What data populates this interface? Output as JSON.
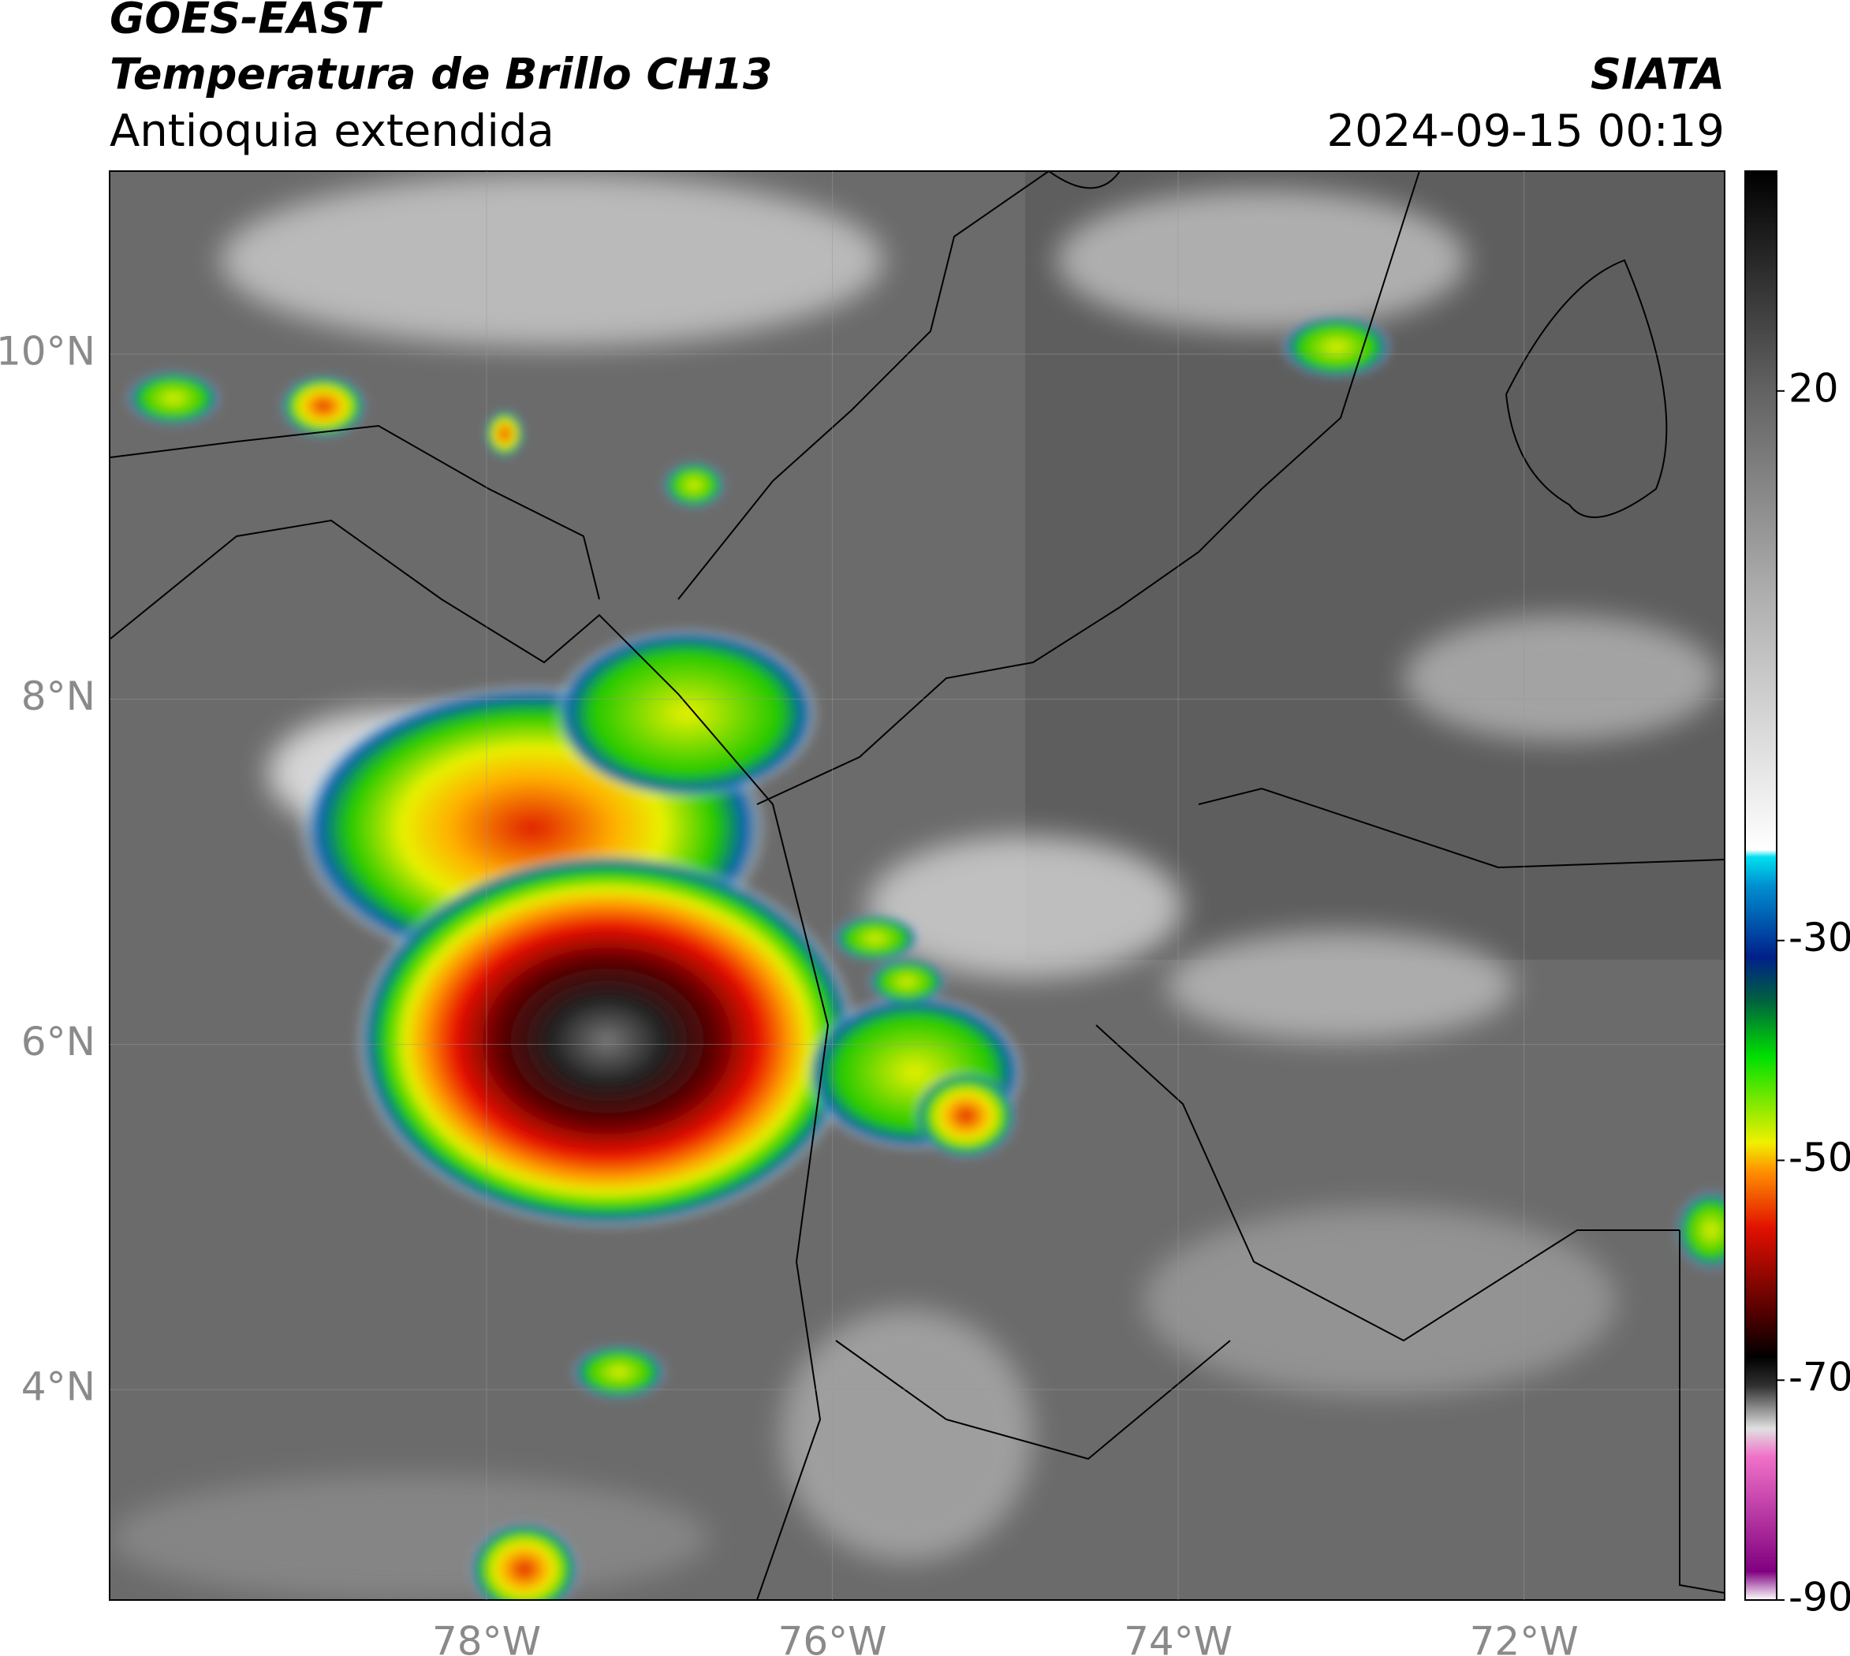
{
  "header": {
    "source": "GOES-EAST",
    "title": "Temperatura de Brillo CH13",
    "subtitle": "Antioquia extendida",
    "agency": "SIATA",
    "datetime": "2024-09-15 00:19"
  },
  "map": {
    "type": "map",
    "xlim": [
      -80.18,
      -70.84
    ],
    "ylim": [
      2.78,
      11.06
    ],
    "xticks": [
      {
        "value": -78,
        "label": "78°W"
      },
      {
        "value": -76,
        "label": "76°W"
      },
      {
        "value": -74,
        "label": "74°W"
      },
      {
        "value": -72,
        "label": "72°W"
      }
    ],
    "yticks": [
      {
        "value": 4,
        "label": "4°N"
      },
      {
        "value": 6,
        "label": "6°N"
      },
      {
        "value": 8,
        "label": "8°N"
      },
      {
        "value": 10,
        "label": "10°N"
      }
    ],
    "grid": true,
    "colorbar": {
      "lim": [
        -90,
        40
      ],
      "ticks": [
        20,
        -30,
        -50,
        -70,
        -90
      ]
    }
  }
}
